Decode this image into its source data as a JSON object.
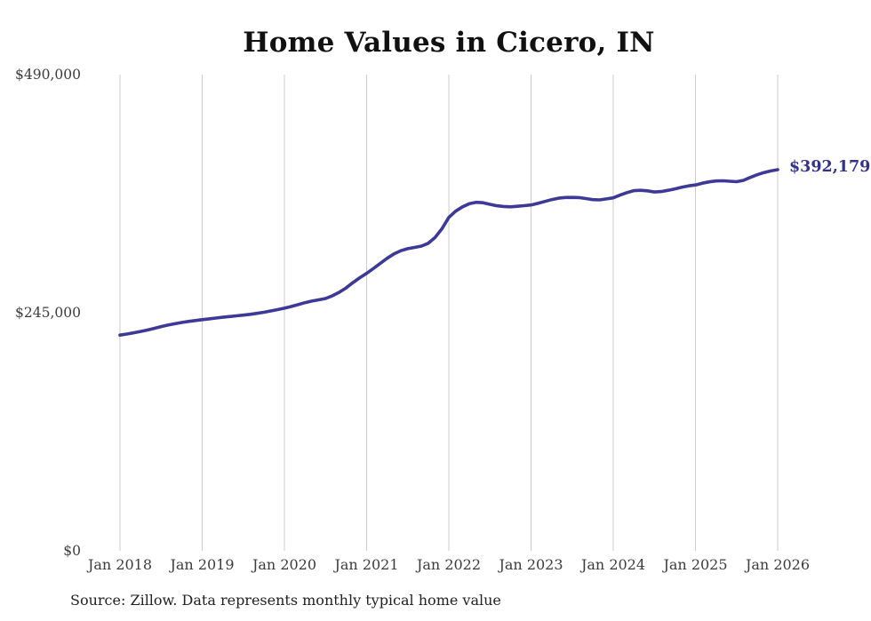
{
  "source_note": "Source: Zillow. Data represents monthly typical home value",
  "colors": {
    "line": "#3d3997",
    "grid": "#cccccc",
    "tick_text": "#3c3c3c",
    "title_text": "#111111",
    "source_text": "#222222",
    "end_label_text": "#33308e",
    "background": "#ffffff"
  },
  "chart_data": {
    "type": "line",
    "title": "Home Values in Cicero, IN",
    "series_name": "Monthly typical home value",
    "x_tick_labels": [
      "Jan 2018",
      "Jan 2019",
      "Jan 2020",
      "Jan 2021",
      "Jan 2022",
      "Jan 2023",
      "Jan 2024",
      "Jan 2025",
      "Jan 2026"
    ],
    "y_tick_labels": [
      "$490,000",
      "$245,000",
      "$0"
    ],
    "y_tick_values": [
      490000,
      245000,
      0
    ],
    "ylim": [
      0,
      490000
    ],
    "grid": "vertical-only",
    "legend": "none",
    "end_label": "$392,179",
    "end_value": 392179,
    "x_start": "Jan 2018",
    "x_end": "Jan 2026",
    "x_interval": "monthly",
    "values_monthly": [
      222000,
      223100,
      224300,
      225700,
      227200,
      228900,
      230700,
      232300,
      233700,
      234900,
      236000,
      237000,
      237900,
      238700,
      239500,
      240300,
      241100,
      241800,
      242500,
      243400,
      244400,
      245500,
      246800,
      248200,
      249700,
      251400,
      253300,
      255300,
      257000,
      258300,
      259600,
      262500,
      266000,
      270500,
      276000,
      281000,
      285500,
      290500,
      295800,
      301000,
      305500,
      308800,
      310900,
      312200,
      313600,
      316500,
      322500,
      331500,
      343100,
      349500,
      354000,
      357200,
      358600,
      358200,
      356500,
      355100,
      354300,
      354000,
      354500,
      355200,
      355900,
      357500,
      359500,
      361400,
      362800,
      363600,
      363700,
      363500,
      362500,
      361400,
      361100,
      362100,
      363200,
      366000,
      368600,
      370600,
      371000,
      370400,
      369200,
      369700,
      371000,
      372400,
      374100,
      375500,
      376500,
      378300,
      379700,
      380600,
      380800,
      380300,
      379800,
      381200,
      384200,
      387000,
      389300,
      390900,
      392179
    ]
  }
}
